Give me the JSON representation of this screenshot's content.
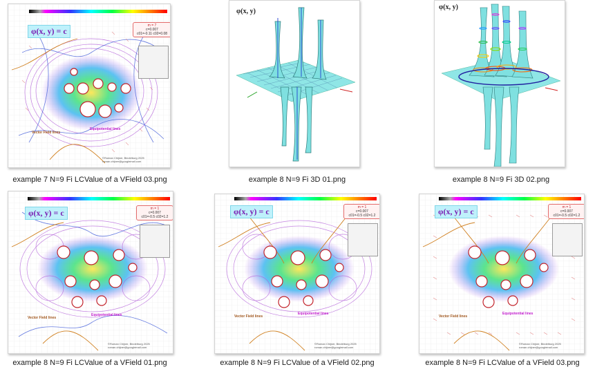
{
  "files": [
    {
      "caption": "example 7  N=9  Fi LCValue of a VField 03.png",
      "kind": "2d",
      "phi_label": "φ(x, y) = c",
      "info_line1": "m = 7",
      "info_line2": "c=0.007",
      "info_line3": "c01=-0.11 c02=0.08",
      "vector_label": "Vector Field lines",
      "equip_label": "Equipotential lines",
      "copyright": "©Roman Chijner, Bindelburg 2025",
      "email": "roman.chijner@googlemail.com"
    },
    {
      "caption": "example 8  N=9  Fi 3D 01.png",
      "kind": "3d",
      "phi_label": "φ(x, y)"
    },
    {
      "caption": "example 8  N=9  Fi 3D 02.png",
      "kind": "3d",
      "phi_label": "φ(x, y)"
    },
    {
      "caption": "example 8  N=9  Fi LCValue of a VField 01.png",
      "kind": "2d",
      "phi_label": "φ(x, y) = c",
      "info_line1": "m = 1",
      "info_line2": "c=0.007",
      "info_line3": "c01=-0.5 c02=1.2",
      "vector_label": "Vector Field lines",
      "equip_label": "Equipotential lines",
      "copyright": "©Roman Chijner, Bindelburg 2025",
      "email": "roman.chijner@googlemail.com"
    },
    {
      "caption": "example 8  N=9  Fi LCValue of a VField 02.png",
      "kind": "2d",
      "phi_label": "φ(x, y) = c",
      "info_line1": "m = 1",
      "info_line2": "c=0.007",
      "info_line3": "c01=-0.5 c02=1.2",
      "vector_label": "Vector Field lines",
      "equip_label": "Equipotential lines",
      "copyright": "©Roman Chijner, Bindelburg 2025",
      "email": "roman.chijner@googlemail.com"
    },
    {
      "caption": "example 8  N=9  Fi LCValue of a VField 03.png",
      "kind": "2d",
      "phi_label": "φ(x, y) = c",
      "info_line1": "m = 1",
      "info_line2": "c=0.007",
      "info_line3": "c01=-0.5 c02=1.2",
      "vector_label": "Vector Field lines",
      "equip_label": "Equipotential lines",
      "copyright": "©Roman Chijner, Bindelburg 2025",
      "email": "roman.chijner@googlemail.com"
    }
  ],
  "colors": {
    "selection_bg": "#ffffff",
    "caption_text": "#1a1a1a",
    "phi_box_bg": "#bff1fb",
    "info_border": "#e36b6b",
    "surface": "#7fe0e0",
    "field_purple": "#b05ad8",
    "field_blue": "#3f5ad8",
    "field_red": "#c2222a",
    "field_orange": "#d08020"
  }
}
